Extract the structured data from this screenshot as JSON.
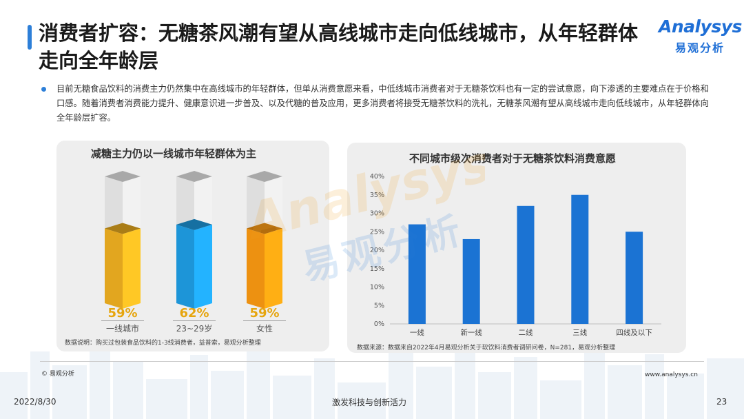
{
  "header": {
    "title": "消费者扩容：无糖茶风潮有望从高线城市走向低线城市，从年轻群体走向全年龄层",
    "logo_word": "Analysys",
    "logo_cn": "易观分析"
  },
  "intro": {
    "text": "目前无糖食品饮料的消费主力仍然集中在高线城市的年轻群体，但单从消费意愿来看，中低线城市消费者对于无糖茶饮料也有一定的尝试意愿，向下渗透的主要难点在于价格和口感。随着消费者消费能力提升、健康意识进一步普及、以及代糖的普及应用，更多消费者将接受无糖茶饮料的洗礼，无糖茶风潮有望从高线城市走向低线城市，从年轻群体向全年龄层扩容。"
  },
  "colors": {
    "accent": "#2d7fd8",
    "bar_blue": "#1b73d3",
    "cyl_gold": "#f3b321",
    "cyl_cyan": "#1fa0e8",
    "cyl_orange": "#ff9c12"
  },
  "chart_data": [
    {
      "type": "bar",
      "title": "减糖主力仍以一线城市年轻群体为主",
      "categories": [
        "一线城市",
        "23~29岁",
        "女性"
      ],
      "values": [
        59,
        62,
        59
      ],
      "value_labels": [
        "59%",
        "62%",
        "59%"
      ],
      "unit": "%",
      "ylim": [
        0,
        100
      ],
      "note": "数据说明：购买过包装食品饮料的1-3线消费者，益普索，易观分析整理"
    },
    {
      "type": "bar",
      "title": "不同城市级次消费者对于无糖茶饮料消费意愿",
      "categories": [
        "一线",
        "新一线",
        "二线",
        "三线",
        "四线及以下"
      ],
      "values": [
        27,
        23,
        32,
        35,
        25
      ],
      "unit": "%",
      "ylim": [
        0,
        40
      ],
      "yticks": [
        "0%",
        "5%",
        "10%",
        "15%",
        "20%",
        "25%",
        "30%",
        "35%",
        "40%"
      ],
      "grid": false,
      "note": "数据来源：数据来自2022年4月易观分析关于软饮料消费者调研问卷，N=281，易观分析整理"
    }
  ],
  "watermark": {
    "word": "Analysys",
    "cn": "易观分析"
  },
  "footer": {
    "copyright": "© 易观分析",
    "site": "www.analysys.cn",
    "date": "2022/8/30",
    "slogan": "激发科技与创新活力",
    "page": "23"
  }
}
